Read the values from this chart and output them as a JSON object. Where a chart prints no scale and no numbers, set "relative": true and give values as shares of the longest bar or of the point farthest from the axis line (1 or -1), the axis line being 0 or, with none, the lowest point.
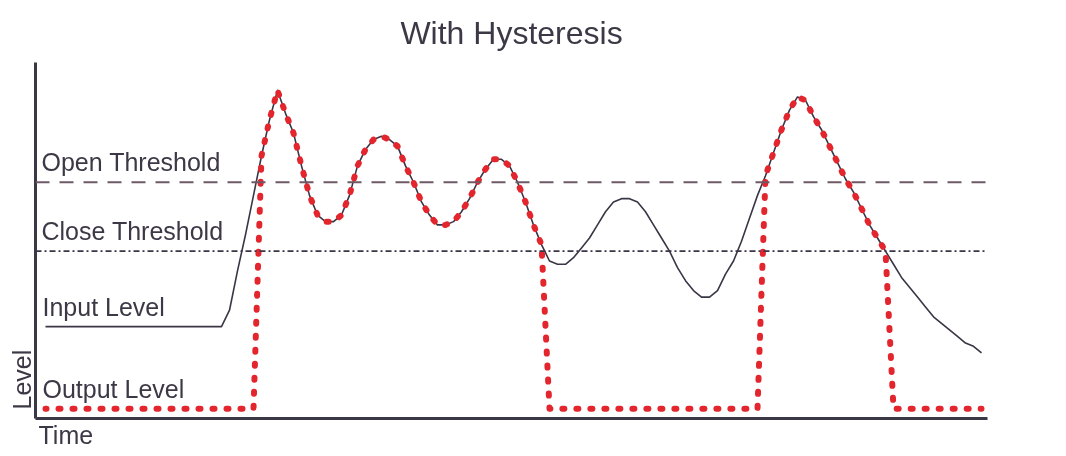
{
  "chart_data": {
    "type": "line",
    "title": "With Hysteresis",
    "xlabel": "Time",
    "ylabel": "Level",
    "relative": true,
    "categories": [
      null,
      null,
      null,
      null,
      null,
      null,
      null,
      null,
      null,
      null,
      null,
      null,
      null,
      null,
      null,
      null,
      null,
      null,
      null,
      null,
      null,
      null,
      null,
      null,
      null,
      null,
      null,
      null,
      null,
      null,
      null,
      null,
      null,
      null,
      null,
      null,
      null,
      null,
      null,
      null,
      null,
      null,
      null,
      null,
      null,
      null,
      null,
      null,
      null,
      null,
      null,
      null,
      null,
      null,
      null,
      null,
      null,
      null,
      null,
      null,
      null,
      null,
      null,
      null,
      null,
      null,
      null,
      null,
      null,
      null,
      null,
      null,
      null,
      null,
      null,
      null,
      null,
      null,
      null,
      null,
      null,
      null,
      null,
      null,
      null,
      null,
      null,
      null,
      null,
      null,
      null,
      null,
      null,
      null,
      null,
      null,
      null,
      null,
      null,
      null,
      null,
      null,
      null,
      null,
      null,
      null,
      null,
      null,
      null,
      null,
      null,
      null,
      null,
      null,
      null,
      null,
      null,
      null
    ],
    "series": [
      {
        "name": "Input Level",
        "color": "#3b3545",
        "line_style": "solid",
        "values": [
          0.28,
          0.28,
          0.28,
          0.28,
          0.28,
          0.28,
          0.28,
          0.28,
          0.28,
          0.28,
          0.28,
          0.28,
          0.28,
          0.28,
          0.28,
          0.28,
          0.28,
          0.28,
          0.28,
          0.28,
          0.28,
          0.28,
          0.28,
          0.33,
          0.45,
          0.56,
          0.68,
          0.8,
          0.91,
          1.0,
          0.93,
          0.87,
          0.77,
          0.68,
          0.62,
          0.6,
          0.6,
          0.62,
          0.68,
          0.77,
          0.82,
          0.85,
          0.86,
          0.85,
          0.83,
          0.77,
          0.72,
          0.66,
          0.62,
          0.59,
          0.59,
          0.6,
          0.63,
          0.67,
          0.72,
          0.76,
          0.79,
          0.79,
          0.77,
          0.72,
          0.66,
          0.59,
          0.53,
          0.48,
          0.47,
          0.47,
          0.49,
          0.52,
          0.55,
          0.59,
          0.63,
          0.66,
          0.67,
          0.67,
          0.66,
          0.63,
          0.59,
          0.55,
          0.51,
          0.46,
          0.42,
          0.39,
          0.37,
          0.37,
          0.39,
          0.44,
          0.48,
          0.54,
          0.61,
          0.68,
          0.74,
          0.81,
          0.88,
          0.94,
          0.98,
          0.97,
          0.92,
          0.88,
          0.83,
          0.78,
          0.73,
          0.69,
          0.64,
          0.59,
          0.55,
          0.51,
          0.47,
          0.43,
          0.4,
          0.37,
          0.34,
          0.31,
          0.29,
          0.27,
          0.25,
          0.23,
          0.22,
          0.2
        ]
      },
      {
        "name": "Output Level",
        "color": "#e3262d",
        "line_style": "dotted",
        "values": [
          0.03,
          0.03,
          0.03,
          0.03,
          0.03,
          0.03,
          0.03,
          0.03,
          0.03,
          0.03,
          0.03,
          0.03,
          0.03,
          0.03,
          0.03,
          0.03,
          0.03,
          0.03,
          0.03,
          0.03,
          0.03,
          0.03,
          0.03,
          0.03,
          0.03,
          0.03,
          0.03,
          0.8,
          0.91,
          1.0,
          0.93,
          0.87,
          0.77,
          0.68,
          0.62,
          0.6,
          0.6,
          0.62,
          0.68,
          0.77,
          0.82,
          0.85,
          0.86,
          0.85,
          0.83,
          0.77,
          0.72,
          0.66,
          0.62,
          0.59,
          0.59,
          0.6,
          0.63,
          0.67,
          0.72,
          0.76,
          0.79,
          0.79,
          0.77,
          0.72,
          0.66,
          0.59,
          0.53,
          0.03,
          0.03,
          0.03,
          0.03,
          0.03,
          0.03,
          0.03,
          0.03,
          0.03,
          0.03,
          0.03,
          0.03,
          0.03,
          0.03,
          0.03,
          0.03,
          0.03,
          0.03,
          0.03,
          0.03,
          0.03,
          0.03,
          0.03,
          0.03,
          0.03,
          0.03,
          0.03,
          0.74,
          0.81,
          0.88,
          0.94,
          0.98,
          0.97,
          0.92,
          0.88,
          0.83,
          0.78,
          0.73,
          0.69,
          0.64,
          0.59,
          0.55,
          0.51,
          0.03,
          0.03,
          0.03,
          0.03,
          0.03,
          0.03,
          0.03,
          0.03,
          0.03,
          0.03,
          0.03,
          0.03
        ]
      }
    ],
    "ref_lines": [
      {
        "axis": "y",
        "value": 0.72,
        "label": "Open Threshold",
        "color": "#6e5a66",
        "line_style": "dashed"
      },
      {
        "axis": "y",
        "value": 0.51,
        "label": "Close Threshold",
        "color": "#3b3545",
        "line_style": "dashdot"
      }
    ]
  }
}
